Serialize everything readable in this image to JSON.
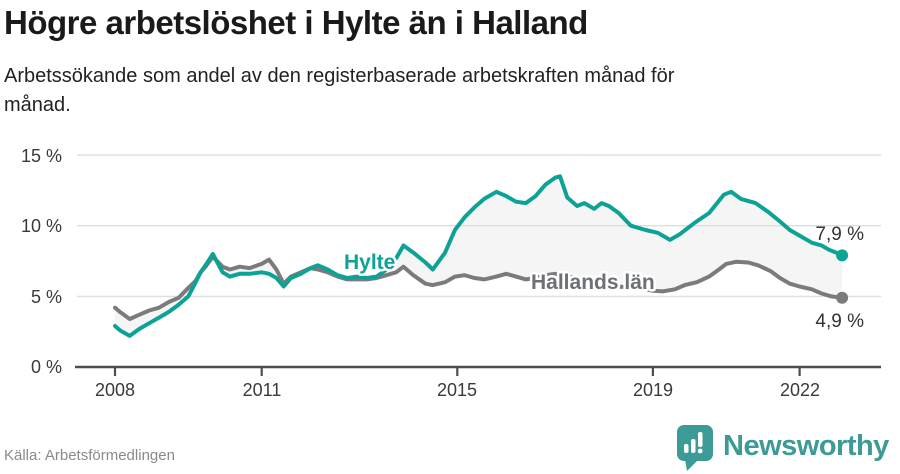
{
  "header": {
    "title": "Högre arbetslöshet i Hylte än i Halland",
    "subtitle": "Arbetssökande som andel av den registerbaserade arbetskraften månad för månad."
  },
  "footer": {
    "source": "Källa: Arbetsförmedlingen",
    "brand": "Newsworthy"
  },
  "colors": {
    "hylte": "#0da296",
    "halland": "#7b7b7b",
    "halland_label": "#6e7077",
    "fill_between": "#f5f5f5",
    "grid": "#dedede",
    "axis": "#4d4d4d",
    "brand": "#3c9b96"
  },
  "chart_data": {
    "type": "line",
    "title": "Högre arbetslöshet i Hylte än i Halland",
    "subtitle": "Arbetssökande som andel av den registerbaserade arbetskraften månad för månad.",
    "xlabel": "",
    "ylabel": "",
    "ylim": [
      0,
      15
    ],
    "xlim": [
      2008,
      2023.2
    ],
    "grid": true,
    "legend_position": "inline-labels",
    "y_ticks": [
      {
        "label": "0 %",
        "value": 0
      },
      {
        "label": "5 %",
        "value": 5
      },
      {
        "label": "10 %",
        "value": 10
      },
      {
        "label": "15 %",
        "value": 15
      }
    ],
    "x_ticks": [
      {
        "label": "2008",
        "value": 2008
      },
      {
        "label": "2011",
        "value": 2011
      },
      {
        "label": "2015",
        "value": 2015
      },
      {
        "label": "2019",
        "value": 2019
      },
      {
        "label": "2022",
        "value": 2022
      }
    ],
    "series": [
      {
        "name": "Hylte",
        "color": "#0da296",
        "end_label": "7,9 %",
        "end_value": 7.9,
        "points": [
          [
            2008.0,
            2.9
          ],
          [
            2008.1,
            2.6
          ],
          [
            2008.3,
            2.2
          ],
          [
            2008.5,
            2.7
          ],
          [
            2008.7,
            3.1
          ],
          [
            2008.9,
            3.5
          ],
          [
            2009.1,
            3.9
          ],
          [
            2009.3,
            4.4
          ],
          [
            2009.5,
            5.0
          ],
          [
            2009.65,
            6.0
          ],
          [
            2009.75,
            6.7
          ],
          [
            2009.85,
            7.2
          ],
          [
            2010.0,
            8.0
          ],
          [
            2010.2,
            6.7
          ],
          [
            2010.35,
            6.4
          ],
          [
            2010.55,
            6.6
          ],
          [
            2010.75,
            6.6
          ],
          [
            2011.0,
            6.7
          ],
          [
            2011.15,
            6.6
          ],
          [
            2011.3,
            6.3
          ],
          [
            2011.45,
            5.7
          ],
          [
            2011.6,
            6.3
          ],
          [
            2011.8,
            6.6
          ],
          [
            2012.0,
            7.0
          ],
          [
            2012.15,
            7.2
          ],
          [
            2012.35,
            6.9
          ],
          [
            2012.55,
            6.5
          ],
          [
            2012.75,
            6.3
          ],
          [
            2012.95,
            6.4
          ],
          [
            2013.15,
            6.3
          ],
          [
            2013.35,
            6.4
          ],
          [
            2013.55,
            6.9
          ],
          [
            2013.75,
            7.7
          ],
          [
            2013.9,
            8.6
          ],
          [
            2014.1,
            8.1
          ],
          [
            2014.35,
            7.4
          ],
          [
            2014.5,
            6.9
          ],
          [
            2014.75,
            8.1
          ],
          [
            2014.95,
            9.7
          ],
          [
            2015.15,
            10.6
          ],
          [
            2015.35,
            11.3
          ],
          [
            2015.55,
            11.9
          ],
          [
            2015.8,
            12.4
          ],
          [
            2016.0,
            12.1
          ],
          [
            2016.2,
            11.7
          ],
          [
            2016.4,
            11.6
          ],
          [
            2016.6,
            12.1
          ],
          [
            2016.8,
            12.9
          ],
          [
            2017.0,
            13.4
          ],
          [
            2017.1,
            13.5
          ],
          [
            2017.25,
            12.0
          ],
          [
            2017.45,
            11.4
          ],
          [
            2017.6,
            11.6
          ],
          [
            2017.8,
            11.2
          ],
          [
            2017.95,
            11.6
          ],
          [
            2018.1,
            11.4
          ],
          [
            2018.3,
            10.9
          ],
          [
            2018.55,
            10.0
          ],
          [
            2018.85,
            9.7
          ],
          [
            2019.1,
            9.5
          ],
          [
            2019.35,
            9.0
          ],
          [
            2019.55,
            9.4
          ],
          [
            2019.85,
            10.2
          ],
          [
            2020.15,
            10.9
          ],
          [
            2020.45,
            12.2
          ],
          [
            2020.6,
            12.4
          ],
          [
            2020.8,
            11.9
          ],
          [
            2021.1,
            11.6
          ],
          [
            2021.35,
            11.0
          ],
          [
            2021.6,
            10.3
          ],
          [
            2021.8,
            9.7
          ],
          [
            2022.0,
            9.3
          ],
          [
            2022.25,
            8.8
          ],
          [
            2022.45,
            8.6
          ],
          [
            2022.6,
            8.3
          ],
          [
            2022.75,
            8.1
          ],
          [
            2022.87,
            7.9
          ]
        ]
      },
      {
        "name": "Hallands län",
        "color": "#7b7b7b",
        "end_label": "4,9 %",
        "end_value": 4.9,
        "points": [
          [
            2008.0,
            4.2
          ],
          [
            2008.1,
            3.9
          ],
          [
            2008.3,
            3.4
          ],
          [
            2008.5,
            3.7
          ],
          [
            2008.7,
            4.0
          ],
          [
            2008.9,
            4.2
          ],
          [
            2009.1,
            4.6
          ],
          [
            2009.3,
            4.9
          ],
          [
            2009.5,
            5.6
          ],
          [
            2009.65,
            6.1
          ],
          [
            2009.75,
            6.7
          ],
          [
            2009.85,
            7.1
          ],
          [
            2010.0,
            7.8
          ],
          [
            2010.2,
            7.1
          ],
          [
            2010.35,
            6.9
          ],
          [
            2010.55,
            7.1
          ],
          [
            2010.75,
            7.0
          ],
          [
            2011.0,
            7.3
          ],
          [
            2011.15,
            7.6
          ],
          [
            2011.3,
            6.9
          ],
          [
            2011.45,
            5.9
          ],
          [
            2011.6,
            6.4
          ],
          [
            2011.8,
            6.7
          ],
          [
            2012.0,
            7.0
          ],
          [
            2012.15,
            6.9
          ],
          [
            2012.35,
            6.7
          ],
          [
            2012.55,
            6.4
          ],
          [
            2012.75,
            6.2
          ],
          [
            2012.95,
            6.2
          ],
          [
            2013.15,
            6.2
          ],
          [
            2013.35,
            6.3
          ],
          [
            2013.55,
            6.5
          ],
          [
            2013.75,
            6.7
          ],
          [
            2013.9,
            7.1
          ],
          [
            2014.1,
            6.5
          ],
          [
            2014.35,
            5.9
          ],
          [
            2014.5,
            5.8
          ],
          [
            2014.75,
            6.0
          ],
          [
            2014.95,
            6.4
          ],
          [
            2015.15,
            6.5
          ],
          [
            2015.35,
            6.3
          ],
          [
            2015.55,
            6.2
          ],
          [
            2015.8,
            6.4
          ],
          [
            2016.0,
            6.6
          ],
          [
            2016.2,
            6.4
          ],
          [
            2016.4,
            6.2
          ],
          [
            2016.6,
            6.3
          ],
          [
            2016.8,
            6.5
          ],
          [
            2017.0,
            6.6
          ],
          [
            2017.25,
            6.4
          ],
          [
            2017.45,
            6.3
          ],
          [
            2017.6,
            6.2
          ],
          [
            2017.8,
            6.1
          ],
          [
            2017.95,
            6.0
          ],
          [
            2018.1,
            5.8
          ],
          [
            2018.3,
            5.7
          ],
          [
            2018.55,
            5.6
          ],
          [
            2018.85,
            5.5
          ],
          [
            2019.0,
            5.4
          ],
          [
            2019.2,
            5.35
          ],
          [
            2019.45,
            5.5
          ],
          [
            2019.65,
            5.8
          ],
          [
            2019.9,
            6.0
          ],
          [
            2020.15,
            6.4
          ],
          [
            2020.35,
            6.9
          ],
          [
            2020.5,
            7.3
          ],
          [
            2020.7,
            7.45
          ],
          [
            2020.95,
            7.4
          ],
          [
            2021.15,
            7.2
          ],
          [
            2021.4,
            6.8
          ],
          [
            2021.6,
            6.3
          ],
          [
            2021.8,
            5.9
          ],
          [
            2022.0,
            5.7
          ],
          [
            2022.25,
            5.5
          ],
          [
            2022.45,
            5.2
          ],
          [
            2022.65,
            5.0
          ],
          [
            2022.87,
            4.9
          ]
        ]
      }
    ]
  }
}
